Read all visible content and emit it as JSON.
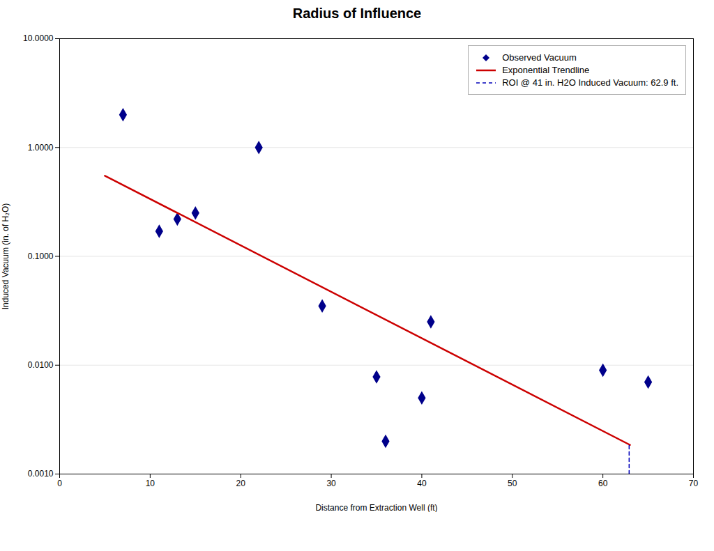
{
  "chart_data": {
    "type": "scatter",
    "title": "Radius of Influence",
    "x_label": "Distance from Extraction Well (ft)",
    "y_label": "Induced Vacuum (in. of H₂O)",
    "xlim": [
      0,
      70
    ],
    "xticks": [
      0,
      10,
      20,
      30,
      40,
      50,
      60,
      70
    ],
    "ylim": [
      0.001,
      10.0
    ],
    "yticks": [
      {
        "value": 0.001,
        "label": "0.0010"
      },
      {
        "value": 0.01,
        "label": "0.0100"
      },
      {
        "value": 0.1,
        "label": "0.1000"
      },
      {
        "value": 1.0,
        "label": "1.0000"
      },
      {
        "value": 10.0,
        "label": "10.0000"
      }
    ],
    "log": "y",
    "grid": true,
    "legend": "upper right",
    "series": [
      {
        "name": "Observed Vacuum",
        "type": "scatter",
        "marker": "diamond",
        "color": "#00008b",
        "x": [
          7,
          11,
          13,
          15,
          22,
          29,
          35,
          36,
          40,
          41,
          60,
          65
        ],
        "values": [
          2.0,
          0.17,
          0.22,
          0.25,
          1.0,
          0.035,
          0.0078,
          0.002,
          0.005,
          0.025,
          0.009,
          0.007
        ]
      },
      {
        "name": "Exponential Trendline",
        "type": "line",
        "line_style": "solid",
        "color": "#cc0000",
        "x": [
          5,
          63
        ],
        "values": [
          0.55,
          0.00185
        ]
      },
      {
        "name": "ROI @ 41 in. H2O Induced Vacuum:  62.9  ft.",
        "type": "line",
        "line_style": "dashed",
        "color": "#0000bb",
        "x": [
          62.9,
          62.9
        ],
        "values": [
          0.001,
          0.00185
        ]
      }
    ]
  }
}
